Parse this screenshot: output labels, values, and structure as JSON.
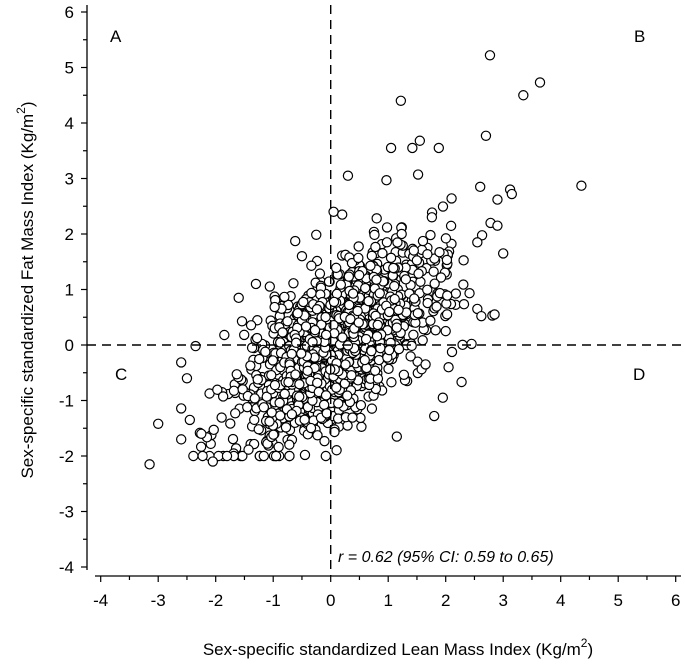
{
  "chart_data": {
    "type": "scatter",
    "title": "",
    "xlabel": "Sex-specific standardized Lean Mass Index (Kg/m",
    "xlabel_sup": "2",
    "xlabel_end": ")",
    "ylabel": "Sex-specific standardized Fat Mass Index (Kg/m",
    "ylabel_sup": "2",
    "ylabel_end": ")",
    "xlim": [
      -4,
      6
    ],
    "ylim": [
      -4,
      6
    ],
    "xticks": [
      -4,
      -3,
      -2,
      -1,
      0,
      1,
      2,
      3,
      4,
      5,
      6
    ],
    "yticks": [
      -4,
      -3,
      -2,
      -1,
      0,
      1,
      2,
      3,
      4,
      5,
      6
    ],
    "grid": false,
    "reference_lines": {
      "x": 0,
      "y": 0,
      "style": "dashed"
    },
    "quadrant_labels": {
      "A": "A",
      "B": "B",
      "C": "C",
      "D": "D"
    },
    "annotation": "r = 0.62 (95% CI: 0.59 to 0.65)",
    "marker": "open-circle",
    "points_highlighted": [
      [
        2.77,
        5.22
      ],
      [
        3.64,
        4.73
      ],
      [
        3.35,
        4.5
      ],
      [
        1.22,
        4.4
      ],
      [
        2.7,
        3.77
      ],
      [
        4.36,
        2.87
      ],
      [
        1.55,
        3.68
      ],
      [
        1.42,
        3.55
      ],
      [
        1.88,
        3.55
      ],
      [
        1.05,
        3.55
      ],
      [
        3.12,
        2.8
      ],
      [
        3.15,
        2.72
      ],
      [
        2.6,
        2.85
      ],
      [
        2.9,
        2.62
      ],
      [
        2.78,
        2.2
      ],
      [
        2.9,
        2.15
      ],
      [
        2.55,
        1.85
      ],
      [
        2.55,
        0.65
      ],
      [
        2.62,
        0.52
      ],
      [
        2.85,
        0.55
      ],
      [
        2.0,
        0.25
      ],
      [
        2.45,
        0.02
      ],
      [
        1.8,
        -1.28
      ],
      [
        1.15,
        -1.65
      ],
      [
        -3.15,
        -2.15
      ],
      [
        -3.0,
        -1.42
      ],
      [
        -2.05,
        -2.1
      ],
      [
        -2.35,
        -0.02
      ],
      [
        -2.5,
        -0.6
      ],
      [
        -1.85,
        0.18
      ],
      [
        -1.6,
        0.85
      ],
      [
        -1.3,
        1.1
      ],
      [
        -0.5,
        1.6
      ],
      [
        0.05,
        2.4
      ],
      [
        0.2,
        2.35
      ],
      [
        0.3,
        3.05
      ],
      [
        -0.95,
        -2.0
      ],
      [
        -2.25,
        -1.6
      ],
      [
        -2.45,
        -1.35
      ],
      [
        1.65,
        -0.35
      ],
      [
        2.05,
        -0.4
      ],
      [
        1.95,
        -0.95
      ]
    ],
    "points_cloud": {
      "n": 1450,
      "r": 0.62,
      "x_mean": 0.1,
      "x_sd": 0.85,
      "y_mean": 0.0,
      "y_sd": 0.85,
      "seed": 7
    }
  }
}
